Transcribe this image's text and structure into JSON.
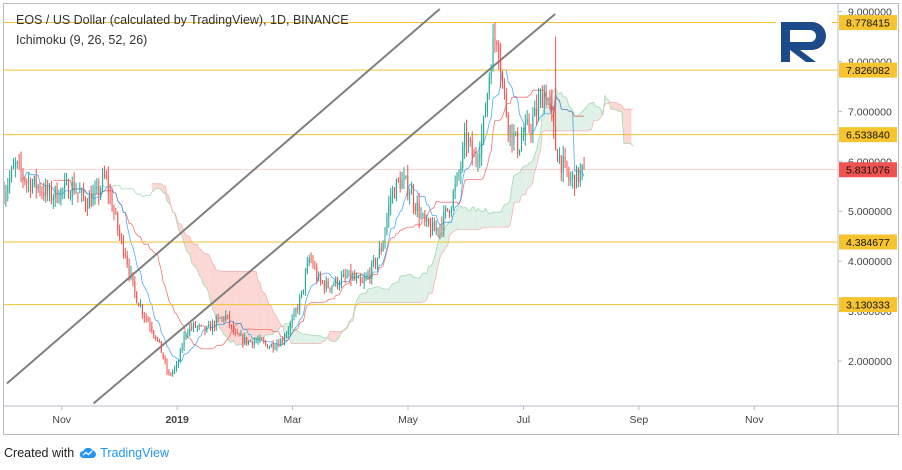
{
  "header": {
    "title": "EOS / US Dollar (calculated by TradingView), 1D, BINANCE",
    "indicator": "Ichimoku (9, 26, 52, 26)"
  },
  "footer": {
    "created_with": "Created with",
    "brand": "TradingView"
  },
  "colors": {
    "up": "#26a69a",
    "down": "#ef5350",
    "level_line": "#f2c230",
    "level_label_bg": "#f5c42f",
    "last_price_bg": "#ef5350",
    "channel": "#7f7f7f",
    "cloud_bear": "#fbd6d2",
    "cloud_bull": "#dff1e7",
    "logo": "#1d4a88"
  },
  "chart_data": {
    "type": "candlestick",
    "title": "EOS / US Dollar (calculated by TradingView), 1D, BINANCE",
    "x_ticks": [
      "Nov",
      "2019",
      "Mar",
      "May",
      "Jul",
      "Sep",
      "Nov"
    ],
    "y_ticks": [
      "2.000000",
      "3.000000",
      "4.000000",
      "5.000000",
      "6.000000",
      "7.000000",
      "8.000000",
      "9.000000"
    ],
    "ylim": [
      1.1,
      9.15
    ],
    "x_month_range": [
      -1.0,
      13.45
    ],
    "grid": false,
    "levels": [
      {
        "value": 8.778415,
        "label": "8.778415"
      },
      {
        "value": 7.826082,
        "label": "7.826082"
      },
      {
        "value": 6.53384,
        "label": "6.533840"
      },
      {
        "value": 4.384677,
        "label": "4.384677"
      },
      {
        "value": 3.130333,
        "label": "3.130333"
      }
    ],
    "last_price": {
      "value": 5.831076,
      "label": "5.831076"
    },
    "channel_lines": [
      {
        "from": [
          -0.95,
          1.55
        ],
        "to": [
          6.55,
          9.05
        ]
      },
      {
        "from": [
          0.55,
          1.15
        ],
        "to": [
          8.55,
          8.95
        ]
      }
    ],
    "price_path": [
      [
        -1.0,
        5.4
      ],
      [
        -0.8,
        5.9
      ],
      [
        -0.6,
        5.6
      ],
      [
        -0.4,
        5.5
      ],
      [
        -0.2,
        5.3
      ],
      [
        0.0,
        5.4
      ],
      [
        0.2,
        5.5
      ],
      [
        0.4,
        5.2
      ],
      [
        0.6,
        5.3
      ],
      [
        0.75,
        5.7
      ],
      [
        0.9,
        5.0
      ],
      [
        1.0,
        4.5
      ],
      [
        1.1,
        4.2
      ],
      [
        1.25,
        3.4
      ],
      [
        1.4,
        3.0
      ],
      [
        1.55,
        2.7
      ],
      [
        1.7,
        2.3
      ],
      [
        1.85,
        1.7
      ],
      [
        2.0,
        1.9
      ],
      [
        2.15,
        2.6
      ],
      [
        2.3,
        2.7
      ],
      [
        2.5,
        2.6
      ],
      [
        2.7,
        2.8
      ],
      [
        2.85,
        2.9
      ],
      [
        3.0,
        2.5
      ],
      [
        3.2,
        2.4
      ],
      [
        3.4,
        2.4
      ],
      [
        3.6,
        2.3
      ],
      [
        3.8,
        2.4
      ],
      [
        4.0,
        2.8
      ],
      [
        4.15,
        3.3
      ],
      [
        4.3,
        4.1
      ],
      [
        4.45,
        3.6
      ],
      [
        4.6,
        3.5
      ],
      [
        4.8,
        3.6
      ],
      [
        5.0,
        3.7
      ],
      [
        5.2,
        3.5
      ],
      [
        5.4,
        3.9
      ],
      [
        5.55,
        4.3
      ],
      [
        5.7,
        5.3
      ],
      [
        5.85,
        5.6
      ],
      [
        6.0,
        5.5
      ],
      [
        6.15,
        5.1
      ],
      [
        6.3,
        4.7
      ],
      [
        6.45,
        4.6
      ],
      [
        6.6,
        4.8
      ],
      [
        6.75,
        5.2
      ],
      [
        6.9,
        5.8
      ],
      [
        7.0,
        6.5
      ],
      [
        7.15,
        6.0
      ],
      [
        7.3,
        6.6
      ],
      [
        7.45,
        8.2
      ],
      [
        7.55,
        8.6
      ],
      [
        7.65,
        7.4
      ],
      [
        7.75,
        6.7
      ],
      [
        7.9,
        6.3
      ],
      [
        8.05,
        6.6
      ],
      [
        8.2,
        6.9
      ],
      [
        8.35,
        7.4
      ],
      [
        8.45,
        7.2
      ],
      [
        8.55,
        6.3
      ],
      [
        8.65,
        6.0
      ],
      [
        8.8,
        5.6
      ],
      [
        8.95,
        5.7
      ],
      [
        9.05,
        5.83
      ]
    ],
    "ichimoku": {
      "tenkan_color": "#2196f3",
      "kijun_color": "#ef5350",
      "span_a_color": "#8fd3a2",
      "span_b_color": "#f4a6a0"
    }
  }
}
